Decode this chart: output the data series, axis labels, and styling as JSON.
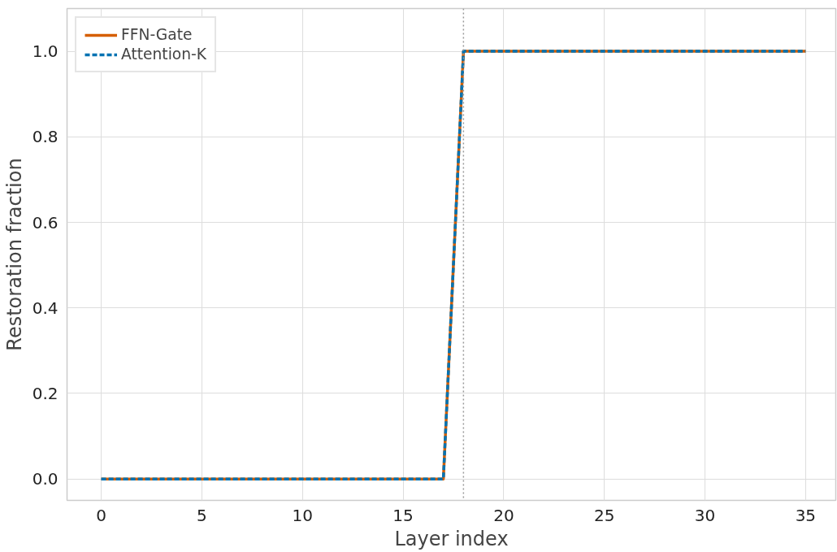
{
  "chart_data": {
    "type": "line",
    "xlabel": "Layer index",
    "ylabel": "Restoration fraction",
    "x": [
      0,
      17,
      18,
      35
    ],
    "series": [
      {
        "name": "FFN-Gate",
        "color": "#d55e00",
        "values": [
          0,
          0,
          1,
          1
        ],
        "line_style": "solid"
      },
      {
        "name": "Attention-K",
        "color": "#0072b2",
        "values": [
          0,
          0,
          1,
          1
        ],
        "line_style": "dashed"
      }
    ],
    "xlim": [
      -1.7,
      36.5
    ],
    "ylim": [
      -0.05,
      1.1
    ],
    "xticks": [
      0,
      5,
      10,
      15,
      20,
      25,
      30,
      35
    ],
    "yticks": [
      {
        "value": 0,
        "label": "0.0"
      },
      {
        "value": 0.2,
        "label": "0.2"
      },
      {
        "value": 0.4,
        "label": "0.4"
      },
      {
        "value": 0.6,
        "label": "0.6"
      },
      {
        "value": 0.8,
        "label": "0.8"
      },
      {
        "value": 1,
        "label": "1.0"
      }
    ],
    "ref_lines": [
      {
        "axis": "x",
        "value": 18,
        "label": null,
        "color": "#999999",
        "line_style": "dotted"
      }
    ],
    "grid": true,
    "legend": "top left",
    "marker": "none"
  }
}
